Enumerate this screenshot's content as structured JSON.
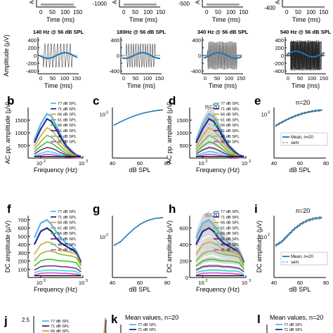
{
  "colors": {
    "77": "#5fb4e6",
    "71": "#1f2c9c",
    "66": "#d8a430",
    "61": "#88b740",
    "56": "#3fbf2c",
    "51": "#7b2d8e",
    "46": "#35e0e0",
    "41": "#e040e0",
    "blue": "#1f77b4",
    "grey": "#aaaaaa"
  },
  "legend": [
    "77 dB SPL",
    "71 dB SPL",
    "66 dB SPL",
    "61 dB SPL",
    "56 dB SPL",
    "51 dB SPL",
    "46 dB SPL",
    "41 dB SPL"
  ],
  "top_row": {
    "ylabel_cut": "Am",
    "ticks_cut": [
      "0",
      "50",
      "100",
      "150"
    ],
    "ytick_cut": [
      "-1000",
      "-500",
      "-400"
    ],
    "xlabel": "Time (ms)"
  },
  "waveforms": [
    {
      "title": "140 Hz @ 56 dB SPL",
      "freq": 140
    },
    {
      "title": "180Hz @ 56 dB SPL",
      "freq": 180
    },
    {
      "title": "340 Hz @ 56 dB SPL",
      "freq": 340
    },
    {
      "title": "540 Hz @ 56 dB SPL",
      "freq": 540
    }
  ],
  "wave_axes": {
    "ylabel": "Amplitude (μV)",
    "xlabel": "Time (ms)",
    "yticks": [
      "400",
      "200",
      "0",
      "-200",
      "-400"
    ],
    "xticks": [
      "0",
      "50",
      "100",
      "150"
    ]
  },
  "panels": {
    "b": {
      "label": "b",
      "ylabel": "AC pp. amplitude (μV)",
      "xlabel": "Frequency (Hz)",
      "yticks": [
        "1500",
        "1000",
        "500"
      ],
      "xticks": [
        "10",
        "10"
      ],
      "xexp": [
        "2",
        "3"
      ]
    },
    "c": {
      "label": "c",
      "xlabel": "dB SPL",
      "xticks": [
        "40",
        "60",
        "80"
      ],
      "ytick": "10",
      "yexp": "3"
    },
    "d": {
      "label": "d",
      "n": "n=20",
      "ylabel": "AC pp. amplitude (μV)",
      "xlabel": "Frequency (Hz)",
      "yticks": [
        "1500",
        "1000",
        "500"
      ],
      "xticks": [
        "10",
        "10"
      ],
      "xexp": [
        "2",
        "3"
      ]
    },
    "e": {
      "label": "e",
      "n": "n=20",
      "xlabel": "dB SPL",
      "xticks": [
        "40",
        "60",
        "80"
      ],
      "ytick": "10",
      "yexp": "3",
      "legend": [
        "Mean, n=20",
        "sem"
      ]
    },
    "f": {
      "label": "f",
      "ylabel": "DC amplitude (μV)",
      "xlabel": "Frequency (Hz)",
      "yticks": [
        "700",
        "600",
        "500",
        "400",
        "300",
        "200",
        "100"
      ],
      "xticks": [
        "10",
        "10"
      ],
      "xexp": [
        "0",
        "5"
      ]
    },
    "g": {
      "label": "g",
      "xlabel": "dB SPL",
      "xticks": [
        "40",
        "60",
        "80"
      ],
      "ytick": "10",
      "yexp": "2"
    },
    "h": {
      "label": "h",
      "n": "n=20",
      "ylabel": "DC amplitude (μV)",
      "xlabel": "Frequency (Hz)",
      "yticks": [
        "600",
        "400",
        "200",
        "0"
      ],
      "xticks": [
        "10",
        "10"
      ],
      "xexp": [
        "2",
        "3"
      ]
    },
    "i": {
      "label": "i",
      "n": "n=20",
      "ylabel": "DC amplitude (μV)",
      "xlabel": "dB SPL",
      "xticks": [
        "40",
        "60",
        "80"
      ],
      "ytick": "10",
      "yexp": "2",
      "legend": [
        "Mean, n=20",
        "sem"
      ]
    }
  },
  "bottom": {
    "j": {
      "label": "j",
      "ytick": "2.5"
    },
    "k": {
      "label": "k",
      "title": "Mean values, n=20"
    },
    "l": {
      "label": "l",
      "title": "Mean values, n=20"
    },
    "legend3": [
      "77 dB SPL",
      "71 dB SPL",
      "66 dB SPL"
    ]
  },
  "chart_data": [
    {
      "type": "line",
      "title": "",
      "xlabel": "Frequency (Hz)",
      "ylabel": "AC pp. amplitude (μV)",
      "x": [
        70,
        100,
        140,
        180,
        230,
        300,
        400,
        550,
        700,
        900
      ],
      "series": [
        {
          "name": "77 dB SPL",
          "values": [
            700,
            1350,
            1750,
            1650,
            1300,
            900,
            520,
            280,
            130,
            60
          ]
        },
        {
          "name": "71 dB SPL",
          "values": [
            600,
            1150,
            1550,
            1450,
            1150,
            800,
            470,
            240,
            110,
            50
          ]
        },
        {
          "name": "66 dB SPL",
          "values": [
            450,
            880,
            1200,
            1100,
            900,
            620,
            360,
            180,
            80,
            40
          ]
        },
        {
          "name": "61 dB SPL",
          "values": [
            340,
            650,
            900,
            820,
            660,
            460,
            260,
            130,
            60,
            30
          ]
        },
        {
          "name": "56 dB SPL",
          "values": [
            240,
            470,
            640,
            590,
            470,
            320,
            180,
            90,
            45,
            20
          ]
        },
        {
          "name": "51 dB SPL",
          "values": [
            160,
            320,
            420,
            390,
            310,
            210,
            120,
            60,
            30,
            15
          ]
        },
        {
          "name": "46 dB SPL",
          "values": [
            100,
            190,
            260,
            240,
            190,
            130,
            75,
            40,
            20,
            10
          ]
        },
        {
          "name": "41 dB SPL",
          "values": [
            60,
            110,
            150,
            140,
            110,
            75,
            45,
            25,
            12,
            6
          ]
        }
      ]
    },
    {
      "type": "line",
      "xlabel": "dB SPL",
      "x": [
        41,
        46,
        51,
        56,
        61,
        66,
        71,
        77
      ],
      "series": [
        {
          "values": [
            200,
            330,
            520,
            760,
            1050,
            1330,
            1580,
            1800
          ]
        }
      ]
    },
    {
      "type": "line",
      "xlabel": "dB SPL",
      "x": [
        41,
        46,
        51,
        56,
        61,
        66,
        71,
        77
      ],
      "series": [
        {
          "name": "Mean, n=20",
          "values": [
            180,
            310,
            500,
            740,
            1030,
            1310,
            1560,
            1760
          ]
        }
      ]
    },
    {
      "type": "line",
      "xlabel": "Frequency (Hz)",
      "ylabel": "DC amplitude (μV)",
      "x": [
        70,
        100,
        140,
        180,
        230,
        300,
        400,
        550,
        700,
        900
      ],
      "series": [
        {
          "name": "77 dB SPL",
          "values": [
            480,
            660,
            700,
            640,
            560,
            480,
            420,
            380,
            320,
            200
          ]
        },
        {
          "name": "71 dB SPL",
          "values": [
            400,
            560,
            600,
            560,
            480,
            420,
            380,
            340,
            300,
            180
          ]
        },
        {
          "name": "66 dB SPL",
          "values": [
            280,
            400,
            430,
            420,
            380,
            340,
            320,
            300,
            280,
            160
          ]
        },
        {
          "name": "61 dB SPL",
          "values": [
            200,
            290,
            320,
            320,
            300,
            280,
            270,
            260,
            240,
            140
          ]
        },
        {
          "name": "56 dB SPL",
          "values": [
            140,
            200,
            220,
            220,
            210,
            200,
            200,
            190,
            180,
            100
          ]
        },
        {
          "name": "51 dB SPL",
          "values": [
            90,
            130,
            140,
            140,
            140,
            130,
            130,
            120,
            110,
            70
          ]
        },
        {
          "name": "46 dB SPL",
          "values": [
            60,
            80,
            90,
            90,
            90,
            85,
            80,
            80,
            70,
            40
          ]
        },
        {
          "name": "41 dB SPL",
          "values": [
            30,
            50,
            55,
            55,
            55,
            50,
            50,
            45,
            40,
            25
          ]
        }
      ]
    },
    {
      "type": "line",
      "xlabel": "dB SPL",
      "x": [
        41,
        46,
        51,
        56,
        61,
        66,
        71,
        77
      ],
      "series": [
        {
          "values": [
            40,
            60,
            120,
            230,
            380,
            530,
            640,
            700
          ]
        }
      ]
    }
  ]
}
